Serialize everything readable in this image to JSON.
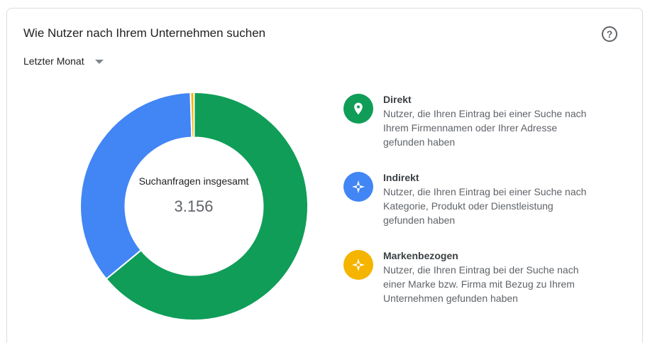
{
  "header": {
    "title": "Wie Nutzer nach Ihrem Unternehmen suchen",
    "help_icon": "help-circle-icon",
    "period_label": "Letzter Monat"
  },
  "center": {
    "label": "Suchanfragen insgesamt",
    "total": "3.156"
  },
  "legend": [
    {
      "name": "Direkt",
      "description": "Nutzer, die Ihren Eintrag bei einer Suche nach Ihrem Firmennamen oder Ihrer Adresse gefunden haben",
      "icon": "map-pin-icon",
      "color": "#0f9d58"
    },
    {
      "name": "Indirekt",
      "description": "Nutzer, die Ihren Eintrag bei einer Suche nach Kategorie, Produkt oder Dienstleistung gefunden haben",
      "icon": "compass-icon",
      "color": "#4285f4"
    },
    {
      "name": "Markenbezogen",
      "description": "Nutzer, die Ihren Eintrag bei der Suche nach einer Marke bzw. Firma mit Bezug zu Ihrem Unternehmen gefunden haben",
      "icon": "compass-icon",
      "color": "#f4b400"
    }
  ],
  "chart_data": {
    "type": "pie",
    "variant": "donut",
    "total": 3156,
    "categories": [
      "Direkt",
      "Indirekt",
      "Markenbezogen"
    ],
    "values": [
      2020,
      1120,
      16
    ],
    "colors": [
      "#0f9d58",
      "#4285f4",
      "#f4b400"
    ]
  }
}
